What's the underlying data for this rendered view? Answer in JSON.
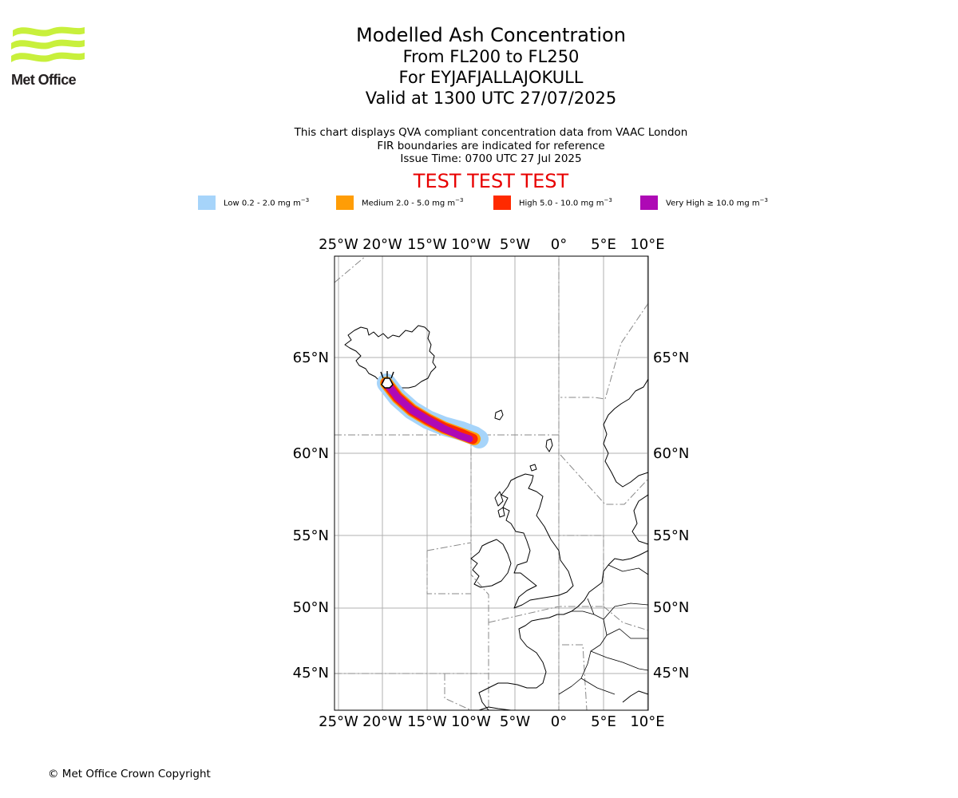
{
  "logo": {
    "text": "Met Office",
    "color": "#c8f03c"
  },
  "title": {
    "main": "Modelled Ash Concentration",
    "levels": "From FL200 to FL250",
    "volcano": "For EYJAFJALLAJOKULL",
    "valid": "Valid at 1300 UTC 27/07/2025"
  },
  "info": [
    "This chart displays QVA compliant concentration data from VAAC London",
    "FIR boundaries are indicated for reference",
    "Issue Time: 0700 UTC 27 Jul 2025"
  ],
  "test_banner": "TEST TEST TEST",
  "legend": [
    {
      "label": "Low 0.2 - 2.0 mg m",
      "color": "#a6d4fa"
    },
    {
      "label": "Medium 2.0 - 5.0 mg m",
      "color": "#ff9d06"
    },
    {
      "label": "High 5.0 - 10.0 mg m",
      "color": "#ff2a00"
    },
    {
      "label": "Very High  ≥  10.0 mg m",
      "color": "#ae09b5"
    }
  ],
  "legend_unit_exp": "−3",
  "map": {
    "lon_labels": [
      "25°W",
      "20°W",
      "15°W",
      "10°W",
      "5°W",
      "0°",
      "5°E",
      "10°E"
    ],
    "lat_labels": [
      "65°N",
      "60°N",
      "55°N",
      "50°N",
      "45°N"
    ],
    "volcano_marker": "volcano-icon"
  },
  "copyright": "© Met Office Crown Copyright"
}
